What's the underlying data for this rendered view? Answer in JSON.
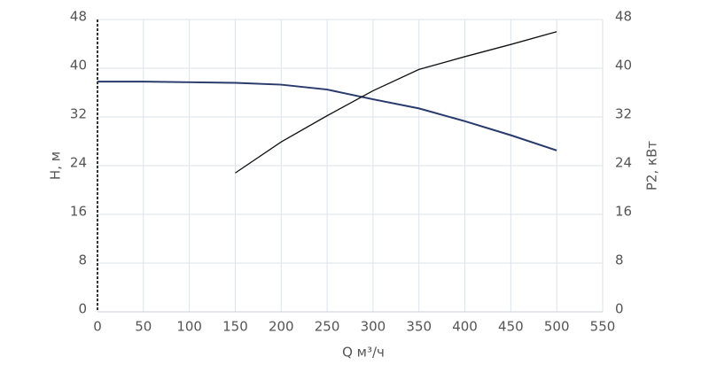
{
  "chart_data": {
    "type": "line",
    "x": [
      0,
      50,
      100,
      150,
      200,
      250,
      300,
      350,
      400,
      450,
      500
    ],
    "series": [
      {
        "name": "H",
        "color": "#283a6b",
        "values": [
          37.8,
          37.8,
          37.7,
          37.6,
          37.3,
          36.5,
          34.9,
          33.4,
          31.3,
          29.0,
          26.5
        ]
      },
      {
        "name": "P2",
        "color": "#111111",
        "axis": "y2",
        "values": [
          null,
          null,
          null,
          22.8,
          27.9,
          32.2,
          36.3,
          39.8,
          41.9,
          43.9,
          46.0
        ]
      }
    ],
    "xlabel": "Q м³/ч",
    "ylabel": "H, м",
    "y2label": "P2, кВт",
    "xlim": [
      0,
      550
    ],
    "xticks": [
      0,
      50,
      100,
      150,
      200,
      250,
      300,
      350,
      400,
      450,
      500,
      550
    ],
    "ylim": [
      0,
      48
    ],
    "yticks": [
      0,
      8,
      16,
      24,
      32,
      40,
      48
    ],
    "y2lim": [
      0,
      48
    ],
    "y2ticks": [
      0,
      8,
      16,
      24,
      32,
      40,
      48
    ],
    "grid": true
  }
}
